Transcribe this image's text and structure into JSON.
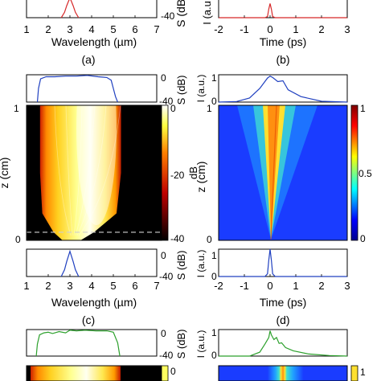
{
  "chart_data": [
    {
      "id": "a",
      "type": "line",
      "panel_label": "(a)",
      "xlabel": "Wavelength (µm)",
      "ylabel": "S (dB)",
      "xlim": [
        1,
        7
      ],
      "ylim": [
        -40,
        0
      ],
      "xticks": [
        "1",
        "2",
        "3",
        "4",
        "5",
        "6",
        "7"
      ],
      "yticks": [
        "-40"
      ],
      "series": [
        {
          "color": "#d62728",
          "x": [
            2.6,
            2.75,
            2.85,
            2.95,
            3.0,
            3.05,
            3.15,
            3.25,
            3.4
          ],
          "y": [
            -40,
            -30,
            -18,
            -8,
            -5,
            -8,
            -18,
            -30,
            -40
          ]
        }
      ]
    },
    {
      "id": "b",
      "type": "line",
      "panel_label": "(b)",
      "xlabel": "Time (ps)",
      "ylabel": "I (a.u.)",
      "xlim": [
        -2,
        3
      ],
      "ylim": [
        0,
        1
      ],
      "xticks": [
        "-2",
        "-1",
        "0",
        "1",
        "2",
        "3"
      ],
      "yticks": [
        "0"
      ],
      "series": [
        {
          "color": "#d62728",
          "x": [
            -2,
            -0.2,
            -0.1,
            -0.05,
            0,
            0.05,
            0.1,
            0.2,
            3
          ],
          "y": [
            0,
            0,
            0.05,
            0.4,
            0.65,
            0.4,
            0.05,
            0,
            0
          ]
        }
      ]
    },
    {
      "id": "c_top",
      "type": "line",
      "ylabel": "S (dB)",
      "xlim": [
        1,
        7
      ],
      "ylim": [
        -40,
        0
      ],
      "yticks": [
        "0",
        "-40"
      ],
      "series": [
        {
          "color": "#2040c0",
          "x": [
            1.5,
            1.55,
            1.65,
            1.9,
            2.3,
            2.8,
            3.3,
            3.8,
            4.3,
            4.7,
            4.9,
            5.0,
            5.1,
            5.2
          ],
          "y": [
            -40,
            -20,
            -6,
            -3,
            -3,
            -2,
            -2,
            -1,
            -3,
            -4,
            -8,
            -20,
            -32,
            -40
          ]
        }
      ]
    },
    {
      "id": "c_map",
      "type": "heatmap",
      "colormap": "hot",
      "ylabel": "z (cm)",
      "ylim": [
        0,
        1
      ],
      "yticks": [
        "1",
        "0"
      ],
      "colorbar": {
        "label": "dB",
        "ticks": [
          "0",
          "-20",
          "-40"
        ],
        "range": [
          -40,
          0
        ]
      },
      "dashed_line_z": 0.06,
      "edges": {
        "z": [
          0,
          0.06,
          0.2,
          0.5,
          1.0
        ],
        "left_um": [
          2.6,
          2.2,
          1.7,
          1.6,
          1.6
        ],
        "right_um": [
          3.4,
          4.0,
          5.0,
          5.2,
          5.2
        ]
      }
    },
    {
      "id": "c_bottom",
      "type": "line",
      "panel_label": "(c)",
      "xlabel": "Wavelength (µm)",
      "ylabel": "S (dB)",
      "xlim": [
        1,
        7
      ],
      "ylim": [
        -40,
        0
      ],
      "xticks": [
        "1",
        "2",
        "3",
        "4",
        "5",
        "6",
        "7"
      ],
      "yticks": [
        "0",
        "-40"
      ],
      "series": [
        {
          "color": "#2040c0",
          "x": [
            2.6,
            2.75,
            2.85,
            2.95,
            3.0,
            3.05,
            3.15,
            3.25,
            3.4
          ],
          "y": [
            -40,
            -30,
            -18,
            -8,
            -3,
            -8,
            -18,
            -30,
            -40
          ]
        }
      ]
    },
    {
      "id": "d_top",
      "type": "line",
      "ylabel": "I (a.u.)",
      "xlim": [
        -2,
        3
      ],
      "ylim": [
        0,
        1
      ],
      "yticks": [
        "1",
        "0"
      ],
      "series": [
        {
          "color": "#2040c0",
          "x": [
            -2,
            -1.3,
            -0.8,
            -0.4,
            -0.1,
            0,
            0.1,
            0.3,
            0.5,
            0.7,
            1.2,
            2.0,
            3
          ],
          "y": [
            0,
            0.02,
            0.15,
            0.5,
            0.88,
            0.95,
            0.9,
            0.75,
            0.78,
            0.45,
            0.2,
            0.03,
            0
          ]
        }
      ]
    },
    {
      "id": "d_map",
      "type": "heatmap",
      "colormap": "jet",
      "ylabel": "z (cm)",
      "ylim": [
        0,
        1
      ],
      "yticks": [
        "1",
        "0"
      ],
      "colorbar": {
        "ticks": [
          "1",
          "0.5",
          "0"
        ],
        "range": [
          0,
          1
        ]
      }
    },
    {
      "id": "d_bottom",
      "type": "line",
      "panel_label": "(d)",
      "xlabel": "Time (ps)",
      "ylabel": "I (a.u.)",
      "xlim": [
        -2,
        3
      ],
      "ylim": [
        0,
        1
      ],
      "xticks": [
        "-2",
        "-1",
        "0",
        "1",
        "2",
        "3"
      ],
      "yticks": [
        "1",
        "0"
      ],
      "series": [
        {
          "color": "#2040c0",
          "x": [
            -2,
            -0.2,
            -0.1,
            -0.05,
            0,
            0.05,
            0.1,
            0.2,
            3
          ],
          "y": [
            0,
            0,
            0.1,
            0.6,
            1,
            0.6,
            0.1,
            0,
            0
          ]
        }
      ]
    },
    {
      "id": "e_top",
      "type": "line",
      "ylabel": "S (dB)",
      "xlim": [
        1,
        7
      ],
      "ylim": [
        -40,
        0
      ],
      "yticks": [
        "0",
        "-40"
      ],
      "series": [
        {
          "color": "#2ca02c",
          "x": [
            1.45,
            1.5,
            1.6,
            1.8,
            2.0,
            2.2,
            2.5,
            2.8,
            3.0,
            3.3,
            3.7,
            4.2,
            4.7,
            5.0,
            5.2,
            5.3
          ],
          "y": [
            -40,
            -22,
            -8,
            -5,
            -4,
            -6,
            -3,
            -5,
            -1,
            -2,
            -1,
            -2,
            -2,
            -4,
            -20,
            -40
          ]
        }
      ]
    },
    {
      "id": "f_top",
      "type": "line",
      "ylabel": "I (a.u.)",
      "xlim": [
        -2,
        3
      ],
      "ylim": [
        0,
        1
      ],
      "yticks": [
        "1",
        "0"
      ],
      "series": [
        {
          "color": "#2ca02c",
          "x": [
            -2,
            -0.8,
            -0.4,
            -0.2,
            -0.05,
            0,
            0.05,
            0.15,
            0.25,
            0.35,
            0.45,
            0.6,
            0.9,
            1.5,
            2.3,
            3
          ],
          "y": [
            0,
            0,
            0.15,
            0.45,
            0.7,
            0.95,
            0.8,
            0.62,
            0.7,
            0.48,
            0.5,
            0.32,
            0.2,
            0.08,
            0.02,
            0
          ]
        }
      ]
    },
    {
      "id": "e_map",
      "type": "heatmap",
      "colormap": "hot",
      "colorbar": {
        "ticks": [
          "0"
        ]
      }
    },
    {
      "id": "f_map",
      "type": "heatmap",
      "colormap": "jet",
      "colorbar": {
        "ticks": [
          "1"
        ]
      }
    }
  ]
}
